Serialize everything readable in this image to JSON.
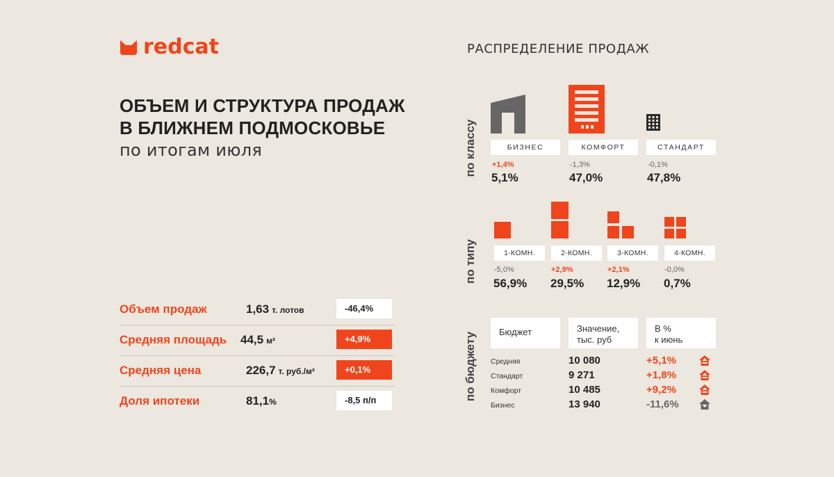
{
  "brand": {
    "name": "redcat",
    "color": "#f0451c",
    "icon": "cat-ears-icon"
  },
  "headline": {
    "line1": "ОБЪЕМ И СТРУКТУРА ПРОДАЖ",
    "line2": "В БЛИЖНЕМ ПОДМОСКОВЬЕ",
    "subtitle": "по итогам июля"
  },
  "metrics": [
    {
      "label": "Объем продаж",
      "value": "1,63",
      "unit": "т. лотов",
      "change": "-46,4%",
      "style": "white"
    },
    {
      "label": "Средняя площадь",
      "value": "44,5",
      "unit": "м²",
      "change": "+4,9%",
      "style": "orange"
    },
    {
      "label": "Средняя цена",
      "value": "226,7",
      "unit": "т. руб./м²",
      "change": "+0,1%",
      "style": "orange"
    },
    {
      "label": "Доля ипотеки",
      "value": "81,1",
      "unit": "%",
      "change": "-8,5 п/п",
      "style": "white"
    }
  ],
  "distribution": {
    "title": "РАСПРЕДЕЛЕНИЕ ПРОДАЖ",
    "by_class": {
      "axis_label": "по классу",
      "items": [
        {
          "label": "БИЗНЕС",
          "change": "+1,4%",
          "share": "5,1%",
          "icon": "business-building-icon"
        },
        {
          "label": "КОМФОРТ",
          "change": "-1,3%",
          "share": "47,0%",
          "icon": "comfort-building-icon"
        },
        {
          "label": "СТАНДАРТ",
          "change": "-0,1%",
          "share": "47,8%",
          "icon": "standard-building-icon"
        }
      ]
    },
    "by_type": {
      "axis_label": "по типу",
      "items": [
        {
          "label": "1-КОМН.",
          "change": "-5,0%",
          "share": "56,9%"
        },
        {
          "label": "2-КОМН.",
          "change": "+2,9%",
          "share": "29,5%"
        },
        {
          "label": "3-КОМН.",
          "change": "+2,1%",
          "share": "12,9%"
        },
        {
          "label": "4-КОМН.",
          "change": "-0,0%",
          "share": "0,7%"
        }
      ]
    },
    "by_budget": {
      "axis_label": "по бюджету",
      "headers": {
        "col1": "Бюджет",
        "col2a": "Значение,",
        "col2b": "тыс. руб",
        "col3a": "В %",
        "col3b": "к июнь"
      },
      "rows": [
        {
          "label": "Средняя",
          "value": "10 080",
          "change": "+5,1%",
          "trend": "up"
        },
        {
          "label": "Стандарт",
          "value": "9 271",
          "change": "+1,8%",
          "trend": "up"
        },
        {
          "label": "Комфорт",
          "value": "10 485",
          "change": "+9,2%",
          "trend": "up"
        },
        {
          "label": "Бизнес",
          "value": "13 940",
          "change": "-11,6%",
          "trend": "down"
        }
      ]
    }
  },
  "colors": {
    "accent": "#f0451c",
    "muted": "#666666",
    "background": "#ece7df"
  }
}
